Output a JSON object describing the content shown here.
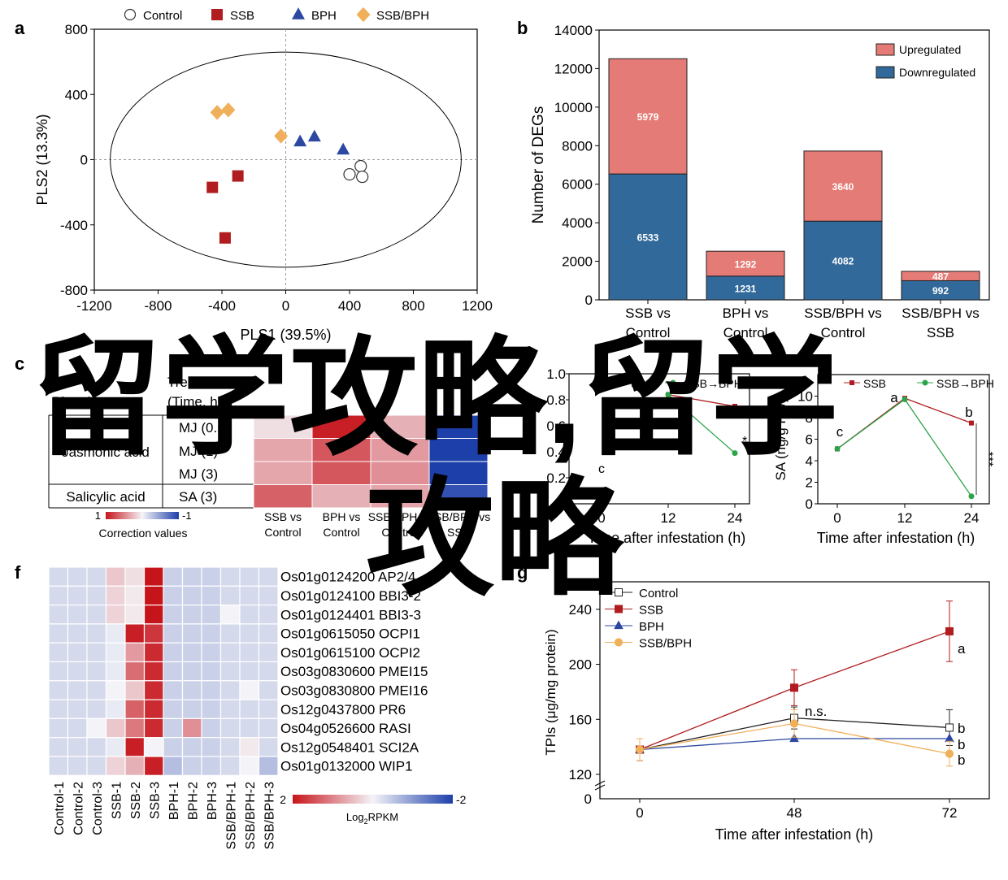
{
  "overlay": {
    "watermark_line1": "留学攻略,留学",
    "watermark_line2": "攻略",
    "color": "#1a8ee6"
  },
  "colors": {
    "upregulated": "#e57b76",
    "downregulated": "#31699a",
    "heat_red": "#c6141b",
    "heat_blue": "#1d3faa",
    "ssb": "#b01c1f",
    "bph": "#2c48a0",
    "ssbbph": "#f0b05b",
    "green": "#2da34a"
  },
  "chart_data": [
    {
      "panel": "a",
      "type": "scatter",
      "xlabel": "PLS1 (39.5%)",
      "ylabel": "PLS2 (13.3%)",
      "xlim": [
        -1200,
        1200
      ],
      "ylim": [
        -800,
        800
      ],
      "xticks": [
        "-1200",
        "-800",
        "-400",
        "0",
        "400",
        "800",
        "1200"
      ],
      "yticks": [
        "800",
        "400",
        "0",
        "-400",
        "-800"
      ],
      "legend": [
        "Control",
        "SSB",
        "BPH",
        "SSB/BPH"
      ],
      "series": [
        {
          "name": "Control",
          "marker": "circle",
          "points": [
            [
              470,
              -40
            ],
            [
              400,
              -90
            ],
            [
              480,
              -105
            ]
          ]
        },
        {
          "name": "SSB",
          "marker": "square",
          "points": [
            [
              -300,
              -100
            ],
            [
              -460,
              -170
            ],
            [
              -380,
              -480
            ]
          ]
        },
        {
          "name": "BPH",
          "marker": "triangle",
          "points": [
            [
              90,
              110
            ],
            [
              180,
              140
            ],
            [
              360,
              60
            ]
          ]
        },
        {
          "name": "SSB/BPH",
          "marker": "diamond",
          "points": [
            [
              -430,
              290
            ],
            [
              -360,
              305
            ],
            [
              -30,
              145
            ]
          ]
        }
      ]
    },
    {
      "panel": "b",
      "type": "bar",
      "ylabel": "Number of DEGs",
      "ylim": [
        0,
        14000
      ],
      "yticks": [
        "0",
        "2000",
        "4000",
        "6000",
        "8000",
        "10000",
        "12000",
        "14000"
      ],
      "categories": [
        "SSB vs Control",
        "BPH vs Control",
        "SSB/BPH vs Control",
        "SSB/BPH vs SSB"
      ],
      "series": [
        {
          "name": "Downregulated",
          "values": [
            6533,
            1231,
            4082,
            992
          ],
          "labels": [
            "6533",
            "1231",
            "4082",
            "992"
          ]
        },
        {
          "name": "Upregulated",
          "values": [
            5979,
            1292,
            3640,
            487
          ],
          "labels": [
            "5979",
            "1292",
            "3640",
            "487"
          ]
        }
      ],
      "legend": [
        "Upregulated",
        "Downregulated"
      ]
    },
    {
      "panel": "c",
      "type": "heatmap",
      "header_left": "Phytohormone",
      "header_treatment": "Treatment",
      "header_time": "(Time, h)",
      "groups": [
        {
          "name": "Jasmonic acid",
          "rows": [
            "MJ (0.5)",
            "MJ (1)",
            "MJ (3)"
          ]
        },
        {
          "name": "Salicylic acid",
          "rows": [
            "SA (3)"
          ]
        }
      ],
      "columns": [
        "SSB vs Control",
        "BPH vs Control",
        "SSB/BPH vs Control",
        "SSB/BPH vs SSB"
      ],
      "values": [
        [
          0.1,
          0.95,
          0.3,
          -1.0
        ],
        [
          0.35,
          0.7,
          0.4,
          -1.0
        ],
        [
          0.35,
          0.7,
          0.45,
          -1.0
        ],
        [
          0.65,
          0.3,
          0.35,
          -0.9
        ]
      ],
      "scale_label": "Correction values",
      "scale_min": "1",
      "scale_max": "-1"
    },
    {
      "panel": "d",
      "type": "line",
      "xlabel": "Time after infestation (h)",
      "xticks": [
        "0",
        "12",
        "24"
      ],
      "ylim": [
        0,
        1.0
      ],
      "yticks": [
        "0.2",
        "0.4",
        "0.6",
        "0.8",
        "1.0"
      ],
      "series": [
        {
          "name": "SSB",
          "x": [
            12,
            24
          ],
          "y": [
            0.84,
            0.75
          ]
        },
        {
          "name": "SSB→BPH",
          "x": [
            12,
            24
          ],
          "y": [
            0.84,
            0.39
          ]
        }
      ],
      "annotations": [
        "c",
        "*"
      ]
    },
    {
      "panel": "e",
      "type": "line",
      "ylabel": "SA (ng/g FW)",
      "xlabel": "Time after infestation (h)",
      "xticks": [
        "0",
        "12",
        "24"
      ],
      "ylim": [
        0,
        12
      ],
      "yticks": [
        "0",
        "2",
        "4",
        "6",
        "8",
        "10"
      ],
      "series": [
        {
          "name": "SSB",
          "x": [
            0,
            12,
            24
          ],
          "y": [
            5.1,
            9.8,
            7.5
          ]
        },
        {
          "name": "SSB→BPH",
          "x": [
            0,
            12,
            24
          ],
          "y": [
            5.1,
            9.7,
            0.7
          ]
        }
      ],
      "annotations": [
        "c",
        "a",
        "b",
        "***"
      ]
    },
    {
      "panel": "f",
      "type": "heatmap",
      "columns": [
        "Control-1",
        "Control-2",
        "Control-3",
        "SSB-1",
        "SSB-2",
        "SSB-3",
        "BPH-1",
        "BPH-2",
        "BPH-3",
        "SSB/BPH-1",
        "SSB/BPH-2",
        "SSB/BPH-3"
      ],
      "rows": [
        "Os01g0124200 AP2/4",
        "Os01g0124100 BBI3-2",
        "Os01g0124401 BBI3-3",
        "Os01g0615050 OCPI1",
        "Os01g0615100 OCPI2",
        "Os03g0830600 PMEI15",
        "Os03g0830800 PMEI16",
        "Os12g0437800 PR6",
        "Os04g0526600 RASI",
        "Os12g0548401 SCI2A",
        "Os01g0132000 WIP1"
      ],
      "values": [
        [
          -0.3,
          -0.3,
          -0.3,
          0.4,
          0.2,
          2,
          -0.4,
          -0.4,
          -0.4,
          -0.3,
          -0.3,
          -0.3
        ],
        [
          -0.3,
          -0.3,
          -0.3,
          0.3,
          0.1,
          2,
          -0.4,
          -0.4,
          -0.4,
          -0.3,
          -0.3,
          -0.3
        ],
        [
          -0.3,
          -0.3,
          -0.3,
          0.3,
          0.1,
          2,
          -0.4,
          -0.4,
          -0.4,
          0,
          -0.3,
          -0.3
        ],
        [
          -0.3,
          -0.3,
          -0.3,
          -0.1,
          1.9,
          1.7,
          -0.4,
          -0.4,
          -0.4,
          -0.3,
          -0.3,
          -0.3
        ],
        [
          -0.3,
          -0.3,
          -0.3,
          -0.1,
          0.8,
          1.8,
          -0.4,
          -0.4,
          -0.4,
          -0.3,
          -0.3,
          -0.3
        ],
        [
          -0.3,
          -0.3,
          -0.3,
          -0.1,
          1.2,
          1.8,
          -0.4,
          -0.4,
          -0.4,
          -0.3,
          -0.3,
          -0.3
        ],
        [
          -0.3,
          -0.3,
          -0.3,
          0,
          0.4,
          1.8,
          -0.4,
          -0.4,
          -0.4,
          -0.3,
          0,
          -0.3
        ],
        [
          -0.3,
          -0.3,
          -0.3,
          -0.1,
          1.3,
          1.8,
          -0.4,
          -0.4,
          -0.4,
          -0.3,
          -0.3,
          -0.3
        ],
        [
          -0.3,
          -0.3,
          0,
          0.4,
          1.1,
          1.8,
          -0.4,
          0.9,
          -0.4,
          -0.3,
          -0.3,
          -0.3
        ],
        [
          -0.3,
          -0.3,
          -0.3,
          -0.1,
          1.9,
          0,
          -0.4,
          -0.4,
          -0.4,
          -0.3,
          0.1,
          -0.3
        ],
        [
          -0.3,
          -0.3,
          -0.3,
          0.3,
          0.6,
          1.9,
          -0.6,
          -0.4,
          -0.4,
          -0.3,
          0,
          -0.6
        ]
      ],
      "scale_min": "2",
      "scale_max": "-2",
      "scale_label": "Log2RPKM",
      "scale_label_main": "Log",
      "scale_label_sub": "2",
      "scale_label_tail": "RPKM"
    },
    {
      "panel": "g",
      "type": "line",
      "ylabel": "TPIs (μg/mg protein)",
      "xlabel": "Time after infestation (h)",
      "xticks": [
        "0",
        "48",
        "72"
      ],
      "ylim": [
        120,
        260
      ],
      "yticks": [
        "120",
        "160",
        "200",
        "240"
      ],
      "y_break_label": "0",
      "series": [
        {
          "name": "Control",
          "x": [
            0,
            48,
            72
          ],
          "y": [
            138,
            161,
            154
          ],
          "err": [
            8,
            8,
            13
          ]
        },
        {
          "name": "SSB",
          "x": [
            0,
            48,
            72
          ],
          "y": [
            138,
            183,
            224
          ],
          "err": [
            8,
            13,
            22
          ]
        },
        {
          "name": "BPH",
          "x": [
            0,
            48,
            72
          ],
          "y": [
            138,
            146,
            146
          ],
          "err": [
            8,
            0,
            0
          ]
        },
        {
          "name": "SSB/BPH",
          "x": [
            0,
            48,
            72
          ],
          "y": [
            138,
            157,
            135
          ],
          "err": [
            8,
            10,
            9
          ]
        }
      ],
      "annotations": {
        "ns": "n.s.",
        "a": "a",
        "b1": "b",
        "b2": "b",
        "b3": "b"
      }
    }
  ],
  "panel_letters": {
    "a": "a",
    "b": "b",
    "c": "c",
    "d": "d",
    "e": "e",
    "f": "f",
    "g": "g"
  }
}
